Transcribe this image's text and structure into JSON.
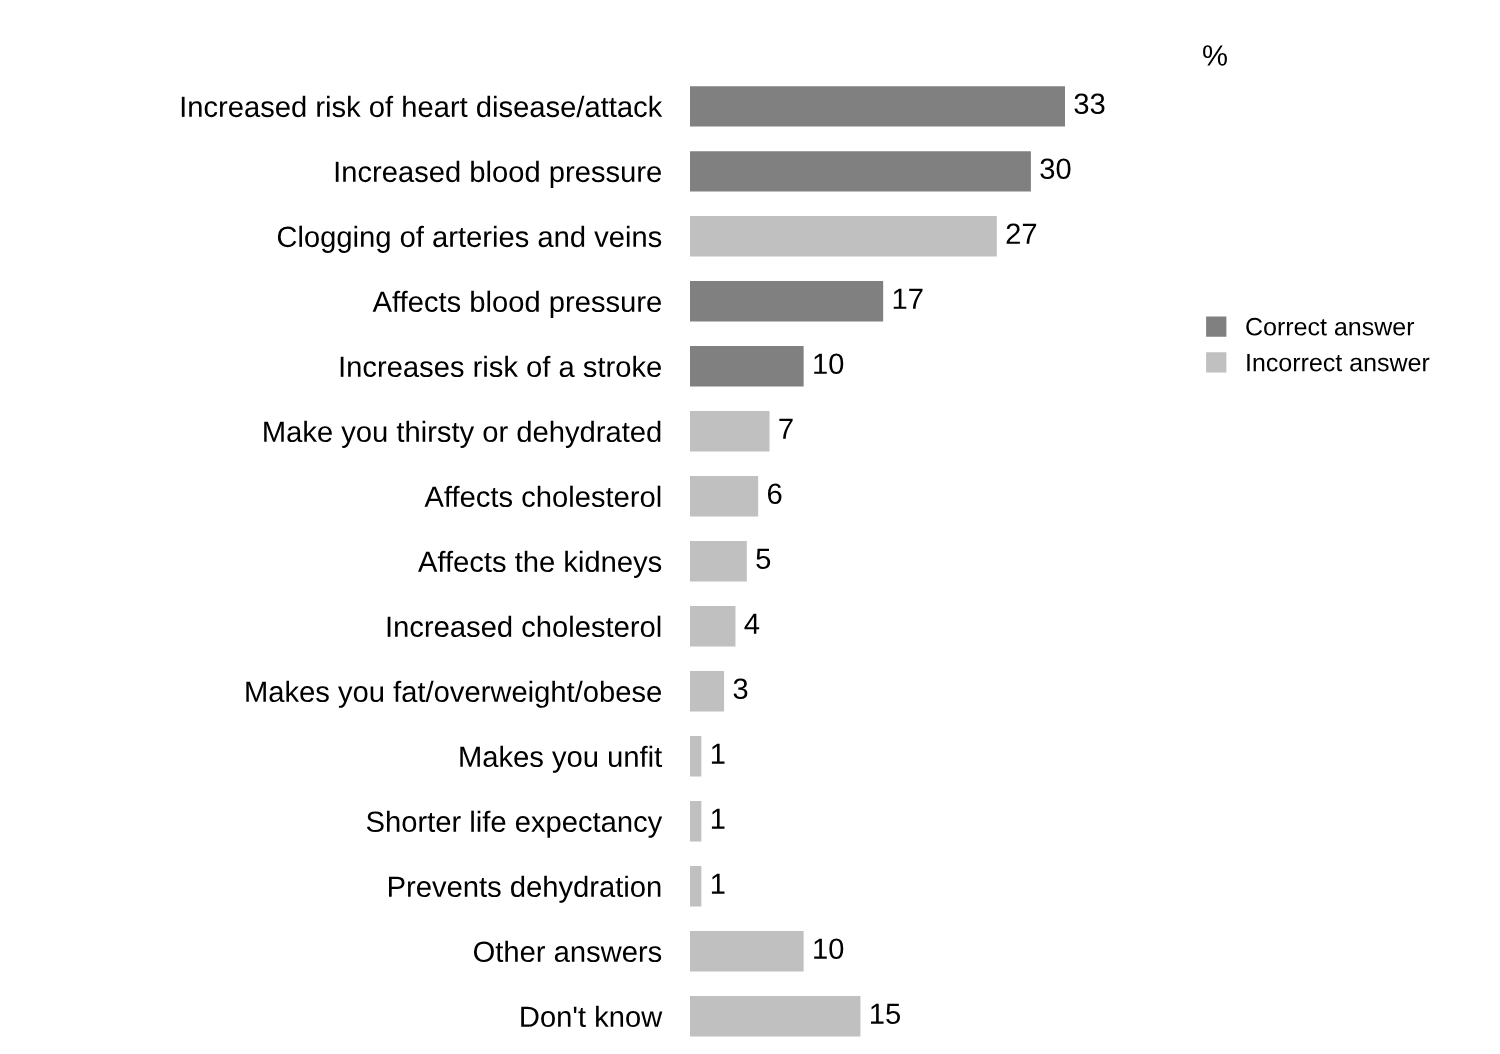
{
  "chart_data": {
    "type": "bar",
    "orientation": "horizontal",
    "stacked": true,
    "data_labels": true,
    "legend": "right",
    "grid": false,
    "annotations": [
      "%"
    ],
    "categories": [
      "Increased risk of heart disease/attack",
      "Increased blood pressure",
      "Clogging of arteries and veins",
      "Affects blood pressure",
      "Increases risk of a stroke",
      "Make you thirsty or dehydrated",
      "Affects cholesterol",
      "Affects the kidneys",
      "Increased cholesterol",
      "Makes you fat/overweight/obese",
      "Makes you unfit",
      "Shorter life expectancy",
      "Prevents dehydration",
      "Other answers",
      "Don't know"
    ],
    "series": [
      {
        "name": "Correct answer",
        "color": "#808080",
        "values": [
          33,
          30,
          null,
          17,
          10,
          null,
          null,
          null,
          null,
          null,
          null,
          null,
          null,
          null,
          null
        ]
      },
      {
        "name": "Incorrect answer",
        "color": "#c0c0c0",
        "values": [
          null,
          null,
          27,
          null,
          null,
          7,
          6,
          5,
          4,
          3,
          1,
          1,
          1,
          10,
          15
        ]
      }
    ]
  }
}
